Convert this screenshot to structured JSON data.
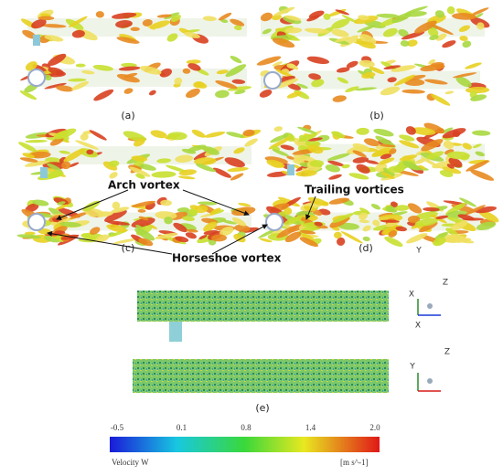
{
  "panels": {
    "a": "(a)",
    "b": "(b)",
    "c": "(c)",
    "d": "(d)",
    "e": "(e)"
  },
  "annotations": {
    "arch": "Arch vortex",
    "trailing": "Trailing vortices",
    "horseshoe": "Horseshoe vortex"
  },
  "axes": {
    "d_y": "Y",
    "e1_x": "X",
    "e1_z": "Z",
    "e1_x2": "X",
    "e2_y": "Y",
    "e2_z": "Z"
  },
  "colorbar": {
    "ticks": [
      "-0.5",
      "0.1",
      "0.8",
      "1.4",
      "2.0"
    ],
    "label": "Velocity W",
    "unit": "[m s^-1]"
  }
}
